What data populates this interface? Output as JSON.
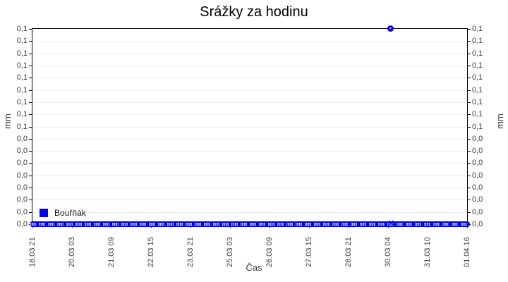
{
  "page": {
    "background": "#ffffff"
  },
  "colors": {
    "series_blue": "#0000ee",
    "gridline": "#ececec",
    "axis_line": "#000000",
    "tick_text": "#3a3a3a",
    "title_text": "#000000"
  },
  "chart_data": {
    "type": "line",
    "title": "Srážky za hodinu",
    "xlabel": "Čas",
    "ylabel": "mm",
    "ylabel_right": "mm",
    "grid": "horizontal light-gray gridlines at every y tick",
    "legend_position": "inside bottom-left",
    "categories": [
      "18.03 21",
      "20.03 03",
      "21.03 09",
      "22.03 15",
      "23.03 21",
      "25.03 03",
      "26.03 09",
      "27.03 15",
      "28.03 21",
      "30.03 04",
      "31.03 10",
      "01.04 16"
    ],
    "y_tick_labels_top_to_bottom": [
      "0,1",
      "0,1",
      "0,1",
      "0,1",
      "0,1",
      "0,1",
      "0,1",
      "0,1",
      "0,1",
      "0,0",
      "0,0",
      "0,0",
      "0,0",
      "0,0",
      "0,0",
      "0,0",
      "0,0"
    ],
    "ylim": [
      0,
      0.09
    ],
    "series": [
      {
        "name": "Bouřňák",
        "color": "#0000ee",
        "baseline_value_mm": 0,
        "spike": {
          "time": "30.03 04",
          "value_mm": 0.09,
          "note": "single point rendered at the very top of the axis; all other hourly values lie on 0 forming the thick blue band along the x-axis"
        }
      }
    ]
  },
  "legend": {
    "label": "Bouřňák"
  }
}
